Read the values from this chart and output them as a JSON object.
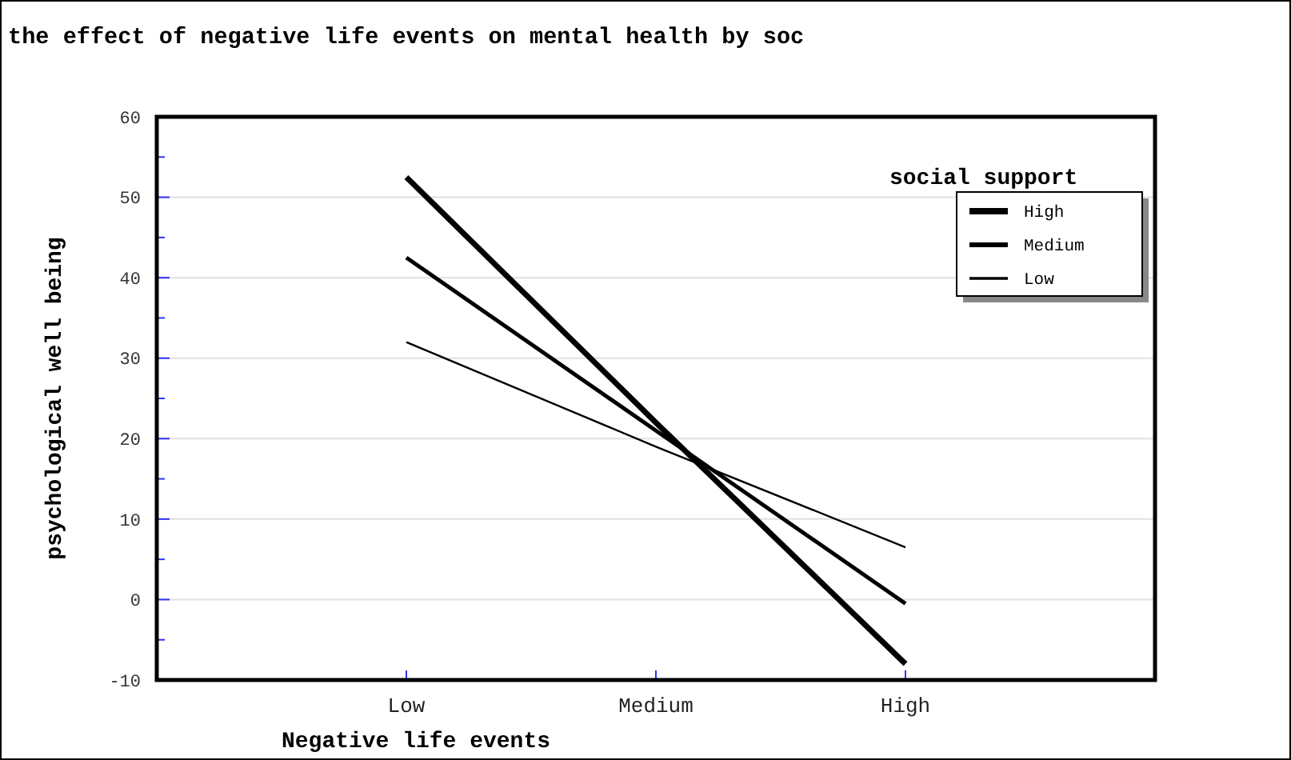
{
  "chart_data": {
    "type": "line",
    "title": "the effect of negative life events on mental health by soc",
    "xlabel": "Negative life events",
    "ylabel": "psychological well being",
    "legend_title": "social support",
    "categories": [
      "Low",
      "Medium",
      "High"
    ],
    "series": [
      {
        "name": "High",
        "color": "#000000",
        "values": [
          52.5,
          22,
          -8
        ]
      },
      {
        "name": "Medium",
        "color": "#000000",
        "values": [
          42.5,
          21,
          -0.5
        ]
      },
      {
        "name": "Low",
        "color": "#000000",
        "values": [
          32,
          19,
          6.5
        ]
      }
    ],
    "ylim": [
      -10,
      60
    ],
    "yticks": [
      -10,
      {
        "value": -5,
        "label": null
      },
      0,
      {
        "value": 5,
        "label": null
      },
      10,
      {
        "value": 15,
        "label": null
      },
      20,
      {
        "value": 25,
        "label": null
      },
      30,
      {
        "value": 35,
        "label": null
      },
      40,
      {
        "value": 45,
        "label": null
      },
      50,
      {
        "value": 55,
        "label": null
      },
      60
    ],
    "grid": "y",
    "legend": "top right",
    "line_style": "solid"
  }
}
